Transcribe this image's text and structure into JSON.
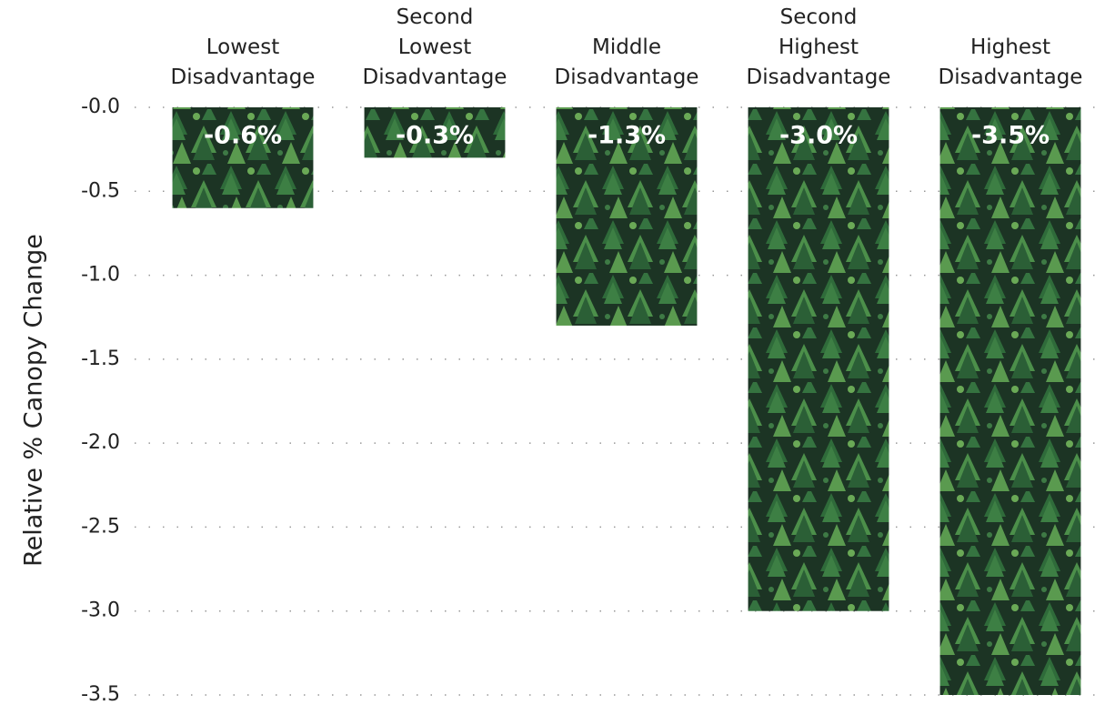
{
  "chart_data": {
    "type": "bar",
    "y_label": "Relative % Canopy Change",
    "categories": [
      "Lowest\nDisadvantage",
      "Second\nLowest\nDisadvantage",
      "Middle\nDisadvantage",
      "Second\nHighest\nDisadvantage",
      "Highest\nDisadvantage"
    ],
    "values": [
      -0.6,
      -0.3,
      -1.3,
      -3.0,
      -3.5
    ],
    "value_labels": [
      "-0.6%",
      "-0.3%",
      "-1.3%",
      "-3.0%",
      "-3.5%"
    ],
    "color": "#2f6b3a",
    "ylim": [
      -3.5,
      0
    ],
    "yticks": [
      {
        "value": 0,
        "label": "-0.0"
      },
      -0.5,
      {
        "value": -1,
        "label": "-1.0"
      },
      -1.5,
      {
        "value": -2,
        "label": "-2.0"
      },
      -2.5,
      {
        "value": -3,
        "label": "-3.0"
      },
      -3.5
    ],
    "grid": true
  }
}
